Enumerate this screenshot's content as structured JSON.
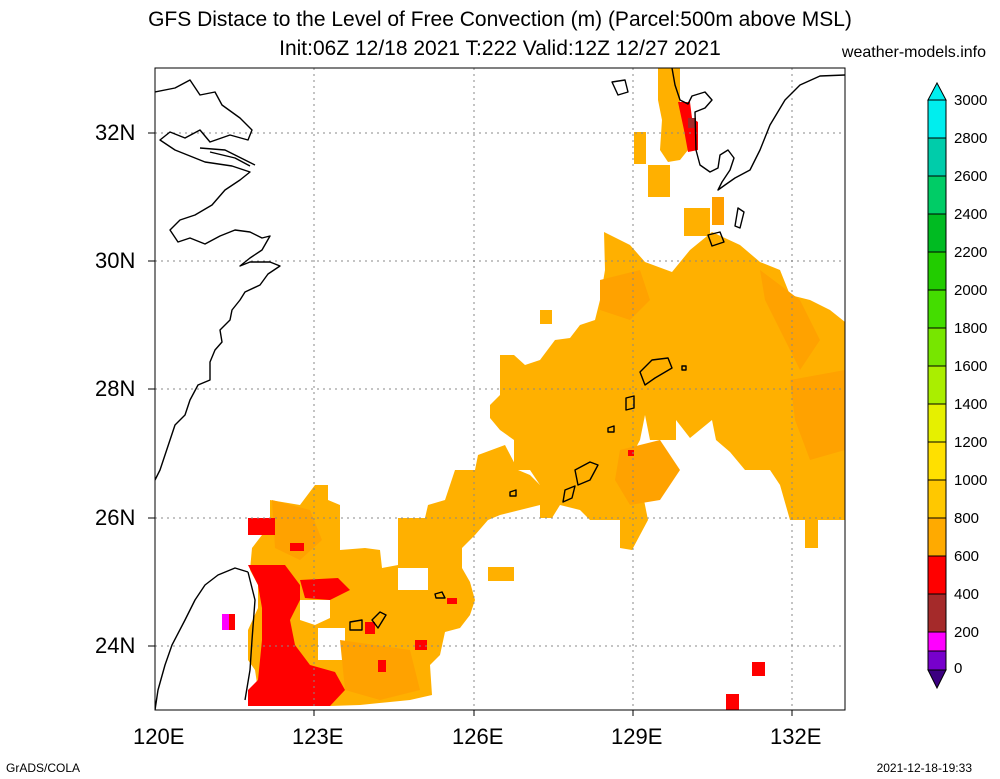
{
  "title": {
    "line1": "GFS Distace to the Level of Free Convection (m) (Parcel:500m above MSL)",
    "line2": "Init:06Z 12/18 2021 T:222 Valid:12Z 12/27 2021"
  },
  "source": "weather-models.info",
  "map": {
    "lon_range": [
      120,
      133
    ],
    "lat_range": [
      23,
      33
    ],
    "x_ticks": [
      {
        "value": 120,
        "label": "120E"
      },
      {
        "value": 123,
        "label": "123E"
      },
      {
        "value": 126,
        "label": "126E"
      },
      {
        "value": 129,
        "label": "129E"
      },
      {
        "value": 132,
        "label": "132E"
      }
    ],
    "y_ticks": [
      {
        "value": 24,
        "label": "24N"
      },
      {
        "value": 26,
        "label": "26N"
      },
      {
        "value": 28,
        "label": "28N"
      },
      {
        "value": 30,
        "label": "30N"
      },
      {
        "value": 32,
        "label": "32N"
      }
    ],
    "grid": true,
    "coast_color": "#000000"
  },
  "colorbar": {
    "labels": [
      "3000",
      "2800",
      "2600",
      "2400",
      "2200",
      "2000",
      "1800",
      "1600",
      "1400",
      "1200",
      "1000",
      "800",
      "600",
      "400",
      "200",
      "0"
    ],
    "colors": [
      "#00eeee",
      "#00ccaa",
      "#00cc66",
      "#00bb22",
      "#22cc00",
      "#44dd00",
      "#77e600",
      "#aaee00",
      "#e6f000",
      "#ffe000",
      "#ffc800",
      "#ffaa00",
      "#ff9900",
      "#ff0000",
      "#a52a2a",
      "#ff00ff",
      "#7700cc",
      "#3b0080"
    ]
  },
  "fields": [
    {
      "value_class": "800-1000",
      "color": "#ffb000"
    },
    {
      "value_class": "600-800",
      "color": "#ff9f00"
    },
    {
      "value_class": "400-600",
      "color": "#ff0000"
    },
    {
      "value_class": "200-400",
      "color": "#a52a2a"
    },
    {
      "value_class": "0-200",
      "color": "#ff00ff"
    }
  ],
  "footer": {
    "left": "GrADS/COLA",
    "right": "2021-12-18-19:33"
  }
}
